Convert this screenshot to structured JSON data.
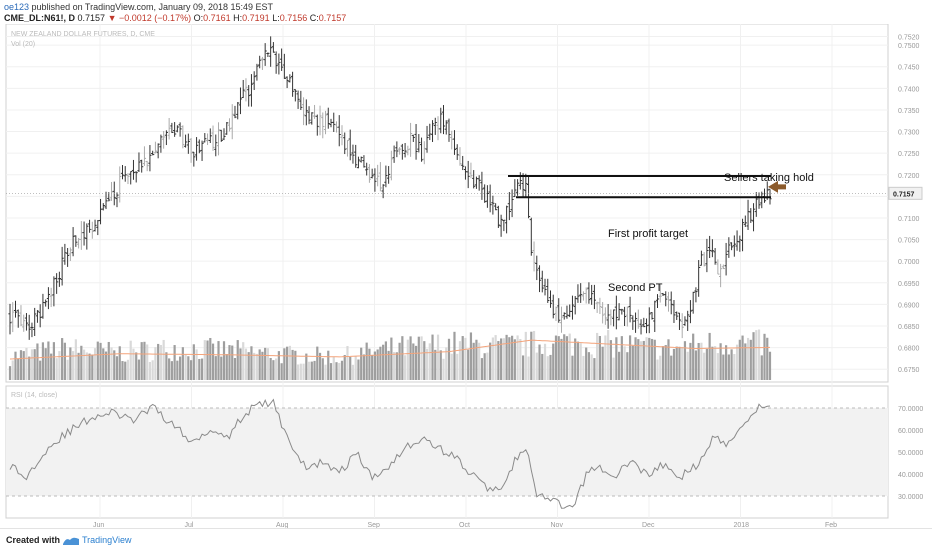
{
  "header": {
    "publisher": "oe123",
    "published_text": "published on TradingView.com, January 09, 2018 15:49 EST",
    "symbol": "CME_DL:N61!, D",
    "last": "0.7157",
    "change_arrow": "▼",
    "change": "−0.0012 (−0.17%)",
    "o_label": "O:",
    "o": "0.7161",
    "h_label": "H:",
    "h": "0.7191",
    "l_label": "L:",
    "l": "0.7156",
    "c_label": "C:",
    "c": "0.7157"
  },
  "footer": {
    "created_with": "Created with",
    "brand": "TradingView",
    "logo_icon": "tradingview-logo-icon"
  },
  "chart_data": {
    "type": "bar",
    "subtype": "ohlc",
    "title": "NEW ZEALAND DOLLAR FUTURES, D, CME",
    "volume_label": "Vol (20)",
    "rsi_label": "RSI (14, close)",
    "price_label": "0.7157",
    "ylim": [
      0.6725,
      0.7535
    ],
    "yticks": [
      "0.7520",
      "0.7500",
      "0.7450",
      "0.7400",
      "0.7350",
      "0.7300",
      "0.7250",
      "0.7200",
      "0.7150",
      "0.7100",
      "0.7050",
      "0.7000",
      "0.6950",
      "0.6900",
      "0.6850",
      "0.6800",
      "0.6750"
    ],
    "rsi_ylim": [
      20,
      80
    ],
    "rsi_ticks": [
      "70.0000",
      "60.0000",
      "50.0000",
      "40.0000",
      "30.0000"
    ],
    "rsi_band": [
      30,
      70
    ],
    "months": [
      "Jun",
      "Jul",
      "Aug",
      "Sep",
      "Oct",
      "Nov",
      "Dec",
      "2018",
      "Feb"
    ],
    "price_path": [
      {
        "i": 0,
        "c": 0.6875
      },
      {
        "i": 6,
        "c": 0.6845
      },
      {
        "i": 10,
        "c": 0.6868
      },
      {
        "i": 16,
        "c": 0.695
      },
      {
        "i": 24,
        "c": 0.7055
      },
      {
        "i": 30,
        "c": 0.7085
      },
      {
        "i": 36,
        "c": 0.714
      },
      {
        "i": 42,
        "c": 0.72
      },
      {
        "i": 48,
        "c": 0.722
      },
      {
        "i": 54,
        "c": 0.7275
      },
      {
        "i": 60,
        "c": 0.731
      },
      {
        "i": 66,
        "c": 0.7255
      },
      {
        "i": 72,
        "c": 0.727
      },
      {
        "i": 78,
        "c": 0.73
      },
      {
        "i": 84,
        "c": 0.737
      },
      {
        "i": 88,
        "c": 0.741
      },
      {
        "i": 92,
        "c": 0.7465
      },
      {
        "i": 95,
        "c": 0.749
      },
      {
        "i": 98,
        "c": 0.746
      },
      {
        "i": 102,
        "c": 0.742
      },
      {
        "i": 106,
        "c": 0.735
      },
      {
        "i": 110,
        "c": 0.733
      },
      {
        "i": 116,
        "c": 0.732
      },
      {
        "i": 120,
        "c": 0.729
      },
      {
        "i": 126,
        "c": 0.724
      },
      {
        "i": 132,
        "c": 0.719
      },
      {
        "i": 136,
        "c": 0.717
      },
      {
        "i": 140,
        "c": 0.724
      },
      {
        "i": 146,
        "c": 0.728
      },
      {
        "i": 150,
        "c": 0.725
      },
      {
        "i": 154,
        "c": 0.731
      },
      {
        "i": 158,
        "c": 0.733
      },
      {
        "i": 162,
        "c": 0.726
      },
      {
        "i": 166,
        "c": 0.721
      },
      {
        "i": 170,
        "c": 0.718
      },
      {
        "i": 174,
        "c": 0.7145
      },
      {
        "i": 178,
        "c": 0.709
      },
      {
        "i": 182,
        "c": 0.713
      },
      {
        "i": 186,
        "c": 0.719
      },
      {
        "i": 188,
        "c": 0.7175
      },
      {
        "i": 190,
        "c": 0.701
      },
      {
        "i": 194,
        "c": 0.6935
      },
      {
        "i": 198,
        "c": 0.688
      },
      {
        "i": 202,
        "c": 0.6865
      },
      {
        "i": 206,
        "c": 0.6905
      },
      {
        "i": 210,
        "c": 0.693
      },
      {
        "i": 214,
        "c": 0.69
      },
      {
        "i": 218,
        "c": 0.6865
      },
      {
        "i": 222,
        "c": 0.6885
      },
      {
        "i": 226,
        "c": 0.6875
      },
      {
        "i": 230,
        "c": 0.685
      },
      {
        "i": 234,
        "c": 0.688
      },
      {
        "i": 238,
        "c": 0.692
      },
      {
        "i": 242,
        "c": 0.688
      },
      {
        "i": 244,
        "c": 0.685
      },
      {
        "i": 248,
        "c": 0.689
      },
      {
        "i": 252,
        "c": 0.7
      },
      {
        "i": 256,
        "c": 0.702
      },
      {
        "i": 258,
        "c": 0.697
      },
      {
        "i": 262,
        "c": 0.702
      },
      {
        "i": 266,
        "c": 0.706
      },
      {
        "i": 270,
        "c": 0.711
      },
      {
        "i": 274,
        "c": 0.715
      },
      {
        "i": 277,
        "c": 0.7157
      }
    ],
    "volume_path": [
      {
        "i": 0,
        "v": 0.22
      },
      {
        "i": 20,
        "v": 0.3
      },
      {
        "i": 40,
        "v": 0.26
      },
      {
        "i": 60,
        "v": 0.3
      },
      {
        "i": 80,
        "v": 0.28
      },
      {
        "i": 100,
        "v": 0.24
      },
      {
        "i": 120,
        "v": 0.22
      },
      {
        "i": 140,
        "v": 0.3
      },
      {
        "i": 160,
        "v": 0.34
      },
      {
        "i": 180,
        "v": 0.32
      },
      {
        "i": 200,
        "v": 0.36
      },
      {
        "i": 220,
        "v": 0.34
      },
      {
        "i": 240,
        "v": 0.3
      },
      {
        "i": 260,
        "v": 0.36
      },
      {
        "i": 277,
        "v": 0.34
      }
    ],
    "volume_ma_path": [
      {
        "i": 0,
        "v": 0.2
      },
      {
        "i": 40,
        "v": 0.25
      },
      {
        "i": 80,
        "v": 0.24
      },
      {
        "i": 120,
        "v": 0.22
      },
      {
        "i": 160,
        "v": 0.27
      },
      {
        "i": 190,
        "v": 0.38
      },
      {
        "i": 220,
        "v": 0.34
      },
      {
        "i": 250,
        "v": 0.3
      },
      {
        "i": 277,
        "v": 0.31
      }
    ],
    "rsi_path": [
      {
        "i": 0,
        "v": 44
      },
      {
        "i": 6,
        "v": 38
      },
      {
        "i": 12,
        "v": 50
      },
      {
        "i": 20,
        "v": 58
      },
      {
        "i": 30,
        "v": 66
      },
      {
        "i": 38,
        "v": 68
      },
      {
        "i": 44,
        "v": 64
      },
      {
        "i": 52,
        "v": 70
      },
      {
        "i": 60,
        "v": 62
      },
      {
        "i": 66,
        "v": 54
      },
      {
        "i": 72,
        "v": 60
      },
      {
        "i": 80,
        "v": 58
      },
      {
        "i": 86,
        "v": 68
      },
      {
        "i": 92,
        "v": 72
      },
      {
        "i": 96,
        "v": 72
      },
      {
        "i": 100,
        "v": 60
      },
      {
        "i": 104,
        "v": 50
      },
      {
        "i": 108,
        "v": 42
      },
      {
        "i": 114,
        "v": 46
      },
      {
        "i": 120,
        "v": 40
      },
      {
        "i": 126,
        "v": 50
      },
      {
        "i": 132,
        "v": 38
      },
      {
        "i": 138,
        "v": 44
      },
      {
        "i": 144,
        "v": 52
      },
      {
        "i": 150,
        "v": 56
      },
      {
        "i": 156,
        "v": 52
      },
      {
        "i": 162,
        "v": 48
      },
      {
        "i": 168,
        "v": 40
      },
      {
        "i": 174,
        "v": 34
      },
      {
        "i": 178,
        "v": 32
      },
      {
        "i": 184,
        "v": 46
      },
      {
        "i": 188,
        "v": 52
      },
      {
        "i": 192,
        "v": 30
      },
      {
        "i": 198,
        "v": 28
      },
      {
        "i": 202,
        "v": 24
      },
      {
        "i": 206,
        "v": 26
      },
      {
        "i": 210,
        "v": 40
      },
      {
        "i": 214,
        "v": 44
      },
      {
        "i": 220,
        "v": 38
      },
      {
        "i": 226,
        "v": 46
      },
      {
        "i": 232,
        "v": 40
      },
      {
        "i": 238,
        "v": 44
      },
      {
        "i": 244,
        "v": 38
      },
      {
        "i": 250,
        "v": 44
      },
      {
        "i": 256,
        "v": 56
      },
      {
        "i": 262,
        "v": 54
      },
      {
        "i": 266,
        "v": 62
      },
      {
        "i": 270,
        "v": 66
      },
      {
        "i": 274,
        "v": 72
      },
      {
        "i": 277,
        "v": 70
      }
    ],
    "lines": [
      {
        "name": "resistance-line",
        "price": 0.7197
      },
      {
        "name": "support-line",
        "price": 0.7148
      }
    ],
    "annotations": [
      {
        "text": "Sellers taking hold",
        "price": 0.7193
      },
      {
        "text": "First profit target",
        "price": 0.7063
      },
      {
        "text": "Second PT",
        "price": 0.6938
      }
    ]
  },
  "colors": {
    "bar": "#333333",
    "bar_light": "#aaaaaa",
    "volume": "#9e9e9e",
    "volume_light": "#d9d9d9",
    "volume_ma": "#f4a37a",
    "rsi_line": "#8a8a8a",
    "rsi_band": "#f2f2f2",
    "arrow": "#8b5a2b",
    "grid": "#f0f0f0",
    "brand": "#2a7fcf",
    "neg": "#c0392b"
  }
}
